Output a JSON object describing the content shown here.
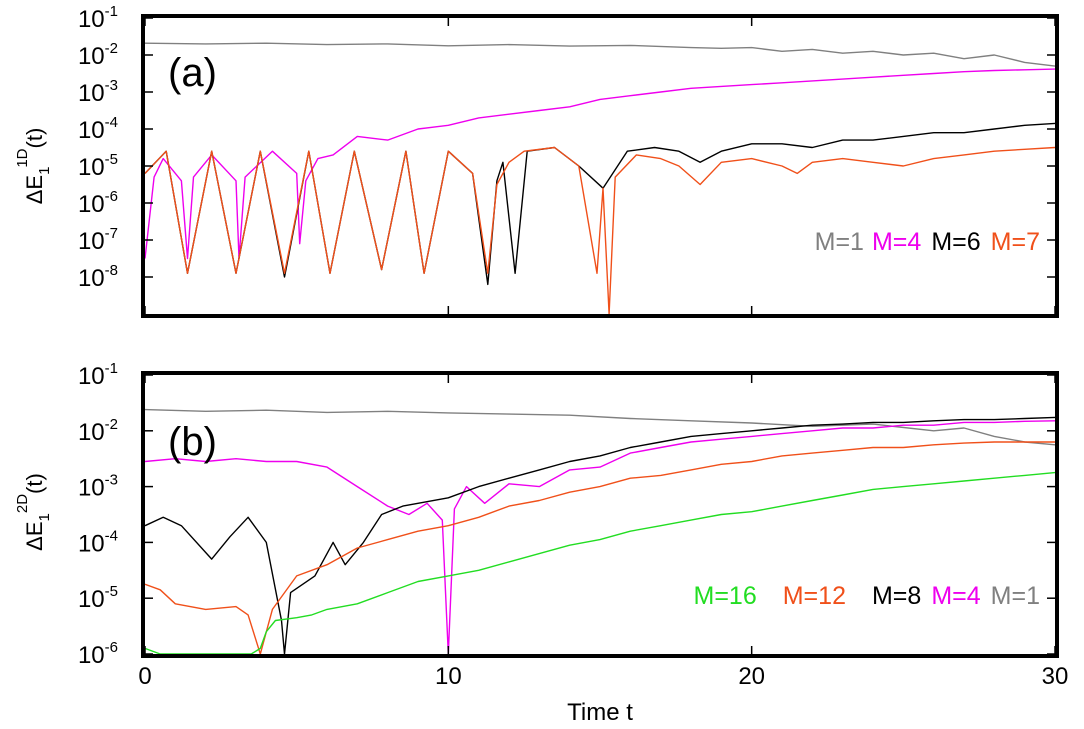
{
  "chart_data": [
    {
      "type": "line",
      "panel_label": "(a)",
      "ylabel": {
        "main": "ΔE",
        "sub": "1",
        "sup": "1D",
        "tail": "(t)"
      },
      "xlim": [
        0,
        30
      ],
      "ylim_exp": [
        -9,
        -1
      ],
      "yscale": "log",
      "y_ticks": [
        {
          "exp": -8,
          "label": "10",
          "sup": "-8"
        },
        {
          "exp": -7,
          "label": "10",
          "sup": "-7"
        },
        {
          "exp": -6,
          "label": "10",
          "sup": "-6"
        },
        {
          "exp": -5,
          "label": "10",
          "sup": "-5"
        },
        {
          "exp": -4,
          "label": "10",
          "sup": "-4"
        },
        {
          "exp": -3,
          "label": "10",
          "sup": "-3"
        },
        {
          "exp": -2,
          "label": "10",
          "sup": "-2"
        },
        {
          "exp": -1,
          "label": "10",
          "sup": "-1"
        }
      ],
      "legend": [
        {
          "label": "M=1",
          "color": "#808080"
        },
        {
          "label": "M=4",
          "color": "#ee00ee"
        },
        {
          "label": "M=6",
          "color": "#000000"
        },
        {
          "label": "M=7",
          "color": "#f0501a"
        }
      ],
      "series": [
        {
          "name": "M=1",
          "color": "#808080",
          "x": [
            0,
            2,
            4,
            6,
            8,
            10,
            12,
            14,
            16,
            18,
            19,
            20,
            21,
            22,
            23,
            24,
            25,
            26,
            27,
            28,
            29,
            30
          ],
          "log10_y": [
            -1.68,
            -1.7,
            -1.68,
            -1.72,
            -1.7,
            -1.75,
            -1.72,
            -1.76,
            -1.74,
            -1.8,
            -1.82,
            -1.8,
            -1.9,
            -1.85,
            -1.95,
            -1.9,
            -2.0,
            -1.95,
            -2.1,
            -2.0,
            -2.2,
            -2.3
          ]
        },
        {
          "name": "M=4",
          "color": "#ee00ee",
          "x": [
            0,
            0.3,
            0.6,
            1.2,
            1.4,
            1.6,
            2.2,
            3.0,
            3.1,
            3.3,
            4.2,
            5.0,
            5.1,
            5.3,
            5.7,
            6.2,
            7.0,
            8.0,
            9.0,
            10,
            11,
            12,
            13,
            14,
            15,
            16,
            17,
            18,
            19,
            20,
            21,
            22,
            23,
            24,
            25,
            26,
            27,
            28,
            29,
            30
          ],
          "log10_y": [
            -7.5,
            -5.3,
            -4.8,
            -5.4,
            -7.5,
            -5.3,
            -4.7,
            -5.4,
            -7.5,
            -5.3,
            -4.6,
            -5.2,
            -7.1,
            -5.4,
            -4.8,
            -4.7,
            -4.2,
            -4.3,
            -4.0,
            -3.9,
            -3.7,
            -3.6,
            -3.5,
            -3.4,
            -3.2,
            -3.1,
            -3.0,
            -2.9,
            -2.85,
            -2.8,
            -2.75,
            -2.7,
            -2.65,
            -2.6,
            -2.55,
            -2.5,
            -2.45,
            -2.42,
            -2.4,
            -2.38
          ]
        },
        {
          "name": "M=6",
          "color": "#000000",
          "x": [
            0,
            0.7,
            1.4,
            2.2,
            3.0,
            3.8,
            4.6,
            5.4,
            6.1,
            6.9,
            7.8,
            8.6,
            9.2,
            10,
            10.8,
            11.3,
            11.6,
            11.8,
            12.2,
            12.6,
            13.5,
            14.3,
            15.1,
            15.9,
            16.8,
            17.6,
            18.3,
            19,
            20,
            21,
            22,
            23,
            24,
            25,
            26,
            27,
            28,
            29,
            30
          ],
          "log10_y": [
            -5.2,
            -4.6,
            -7.9,
            -4.6,
            -7.9,
            -4.6,
            -8.0,
            -4.6,
            -7.9,
            -4.6,
            -7.8,
            -4.6,
            -7.9,
            -4.6,
            -5.2,
            -8.2,
            -5.4,
            -4.9,
            -7.9,
            -4.6,
            -4.5,
            -5.0,
            -5.6,
            -4.6,
            -4.5,
            -4.6,
            -4.9,
            -4.6,
            -4.4,
            -4.4,
            -4.5,
            -4.3,
            -4.3,
            -4.2,
            -4.1,
            -4.1,
            -4.0,
            -3.9,
            -3.85
          ]
        },
        {
          "name": "M=7",
          "color": "#f0501a",
          "x": [
            0,
            0.7,
            1.4,
            2.2,
            3.0,
            3.8,
            4.6,
            5.4,
            6.1,
            6.9,
            7.8,
            8.6,
            9.2,
            10,
            10.8,
            11.3,
            11.6,
            12.0,
            12.5,
            13.5,
            14.3,
            14.9,
            15.1,
            15.3,
            15.5,
            16.2,
            17.0,
            17.6,
            18.3,
            19,
            20,
            21,
            21.5,
            22,
            23,
            24,
            25,
            26,
            27,
            28,
            29,
            30
          ],
          "log10_y": [
            -5.2,
            -4.6,
            -7.9,
            -4.6,
            -7.9,
            -4.6,
            -7.9,
            -4.6,
            -7.9,
            -4.6,
            -7.8,
            -4.6,
            -7.9,
            -4.6,
            -5.2,
            -7.9,
            -5.5,
            -4.9,
            -4.6,
            -4.5,
            -5.0,
            -7.9,
            -5.6,
            -9.0,
            -5.3,
            -4.7,
            -4.8,
            -5.0,
            -5.5,
            -4.9,
            -4.8,
            -5.0,
            -5.2,
            -4.9,
            -4.8,
            -4.9,
            -5.0,
            -4.8,
            -4.7,
            -4.6,
            -4.55,
            -4.5
          ]
        }
      ]
    },
    {
      "type": "line",
      "panel_label": "(b)",
      "ylabel": {
        "main": "ΔE",
        "sub": "1",
        "sup": "2D",
        "tail": "(t)"
      },
      "xlim": [
        0,
        30
      ],
      "ylim_exp": [
        -6,
        -1
      ],
      "yscale": "log",
      "y_ticks": [
        {
          "exp": -6,
          "label": "10",
          "sup": "-6"
        },
        {
          "exp": -5,
          "label": "10",
          "sup": "-5"
        },
        {
          "exp": -4,
          "label": "10",
          "sup": "-4"
        },
        {
          "exp": -3,
          "label": "10",
          "sup": "-3"
        },
        {
          "exp": -2,
          "label": "10",
          "sup": "-2"
        },
        {
          "exp": -1,
          "label": "10",
          "sup": "-1"
        }
      ],
      "legend": [
        {
          "label": "M=16",
          "color": "#22dd22"
        },
        {
          "label": "M=12",
          "color": "#f0501a"
        },
        {
          "label": "M=8",
          "color": "#000000"
        },
        {
          "label": "M=4",
          "color": "#ee00ee"
        },
        {
          "label": "M=1",
          "color": "#808080"
        }
      ],
      "series": [
        {
          "name": "M=1",
          "color": "#808080",
          "x": [
            0,
            2,
            4,
            6,
            8,
            10,
            12,
            14,
            16,
            18,
            20,
            22,
            24,
            26,
            27,
            28,
            29,
            30
          ],
          "log10_y": [
            -1.62,
            -1.65,
            -1.63,
            -1.67,
            -1.65,
            -1.68,
            -1.7,
            -1.72,
            -1.78,
            -1.82,
            -1.86,
            -1.92,
            -1.88,
            -2.0,
            -1.95,
            -2.1,
            -2.2,
            -2.25
          ]
        },
        {
          "name": "M=4",
          "color": "#ee00ee",
          "x": [
            0,
            1,
            2,
            3,
            4,
            5,
            6,
            7,
            8,
            8.7,
            9.3,
            9.8,
            10.0,
            10.2,
            10.6,
            11.2,
            12,
            13,
            14,
            15,
            16,
            17,
            18,
            19,
            20,
            21,
            22,
            23,
            24,
            25,
            26,
            27,
            28,
            29,
            30
          ],
          "log10_y": [
            -2.55,
            -2.5,
            -2.55,
            -2.5,
            -2.55,
            -2.55,
            -2.65,
            -3.0,
            -3.35,
            -3.5,
            -3.3,
            -3.6,
            -6.0,
            -3.4,
            -3.0,
            -3.3,
            -2.95,
            -3.0,
            -2.7,
            -2.65,
            -2.4,
            -2.3,
            -2.2,
            -2.15,
            -2.1,
            -2.05,
            -2.0,
            -1.95,
            -1.95,
            -1.9,
            -1.9,
            -1.85,
            -1.85,
            -1.83,
            -1.82
          ]
        },
        {
          "name": "M=8",
          "color": "#000000",
          "x": [
            0,
            0.6,
            1.2,
            2.2,
            2.8,
            3.4,
            4.0,
            4.5,
            4.6,
            4.8,
            5.6,
            6.2,
            6.6,
            7.2,
            7.8,
            8.5,
            9,
            10,
            11,
            12,
            13,
            14,
            15,
            16,
            17,
            18,
            19,
            20,
            21,
            22,
            23,
            24,
            25,
            26,
            27,
            28,
            29,
            30
          ],
          "log10_y": [
            -3.7,
            -3.55,
            -3.7,
            -4.3,
            -3.9,
            -3.55,
            -4.0,
            -5.4,
            -6.0,
            -4.9,
            -4.6,
            -4.0,
            -4.4,
            -4.0,
            -3.5,
            -3.35,
            -3.3,
            -3.2,
            -3.0,
            -2.85,
            -2.7,
            -2.55,
            -2.45,
            -2.3,
            -2.2,
            -2.1,
            -2.05,
            -2.0,
            -1.95,
            -1.9,
            -1.88,
            -1.85,
            -1.85,
            -1.82,
            -1.8,
            -1.8,
            -1.78,
            -1.76
          ]
        },
        {
          "name": "M=12",
          "color": "#f0501a",
          "x": [
            0,
            0.5,
            1,
            2,
            3,
            3.4,
            3.8,
            4.2,
            5,
            6,
            7,
            8,
            9,
            10,
            11,
            12,
            13,
            14,
            15,
            16,
            17,
            18,
            19,
            20,
            21,
            22,
            23,
            24,
            25,
            26,
            27,
            28,
            29,
            30
          ],
          "log10_y": [
            -4.75,
            -4.85,
            -5.1,
            -5.2,
            -5.15,
            -5.3,
            -6.0,
            -5.2,
            -4.6,
            -4.4,
            -4.1,
            -3.95,
            -3.8,
            -3.7,
            -3.55,
            -3.35,
            -3.25,
            -3.1,
            -3.0,
            -2.85,
            -2.8,
            -2.7,
            -2.6,
            -2.55,
            -2.45,
            -2.4,
            -2.35,
            -2.3,
            -2.3,
            -2.25,
            -2.22,
            -2.2,
            -2.2,
            -2.2
          ]
        },
        {
          "name": "M=16",
          "color": "#22dd22",
          "x": [
            0,
            0.5,
            1.0,
            3.5,
            3.8,
            4.0,
            4.3,
            5.0,
            5.5,
            6,
            7,
            8,
            9,
            10,
            11,
            12,
            13,
            14,
            15,
            16,
            17,
            18,
            19,
            20,
            21,
            22,
            23,
            24,
            25,
            26,
            27,
            28,
            29,
            30
          ],
          "log10_y": [
            -5.9,
            -6.0,
            -6.0,
            -6.0,
            -5.9,
            -5.6,
            -5.4,
            -5.35,
            -5.3,
            -5.2,
            -5.1,
            -4.9,
            -4.7,
            -4.6,
            -4.5,
            -4.35,
            -4.2,
            -4.05,
            -3.95,
            -3.8,
            -3.7,
            -3.6,
            -3.5,
            -3.45,
            -3.35,
            -3.25,
            -3.15,
            -3.05,
            -3.0,
            -2.95,
            -2.9,
            -2.85,
            -2.8,
            -2.75
          ]
        }
      ]
    }
  ],
  "x_ticks": [
    {
      "value": 0,
      "label": "0"
    },
    {
      "value": 10,
      "label": "10"
    },
    {
      "value": 20,
      "label": "20"
    },
    {
      "value": 30,
      "label": "30"
    }
  ],
  "xlabel": "Time t"
}
